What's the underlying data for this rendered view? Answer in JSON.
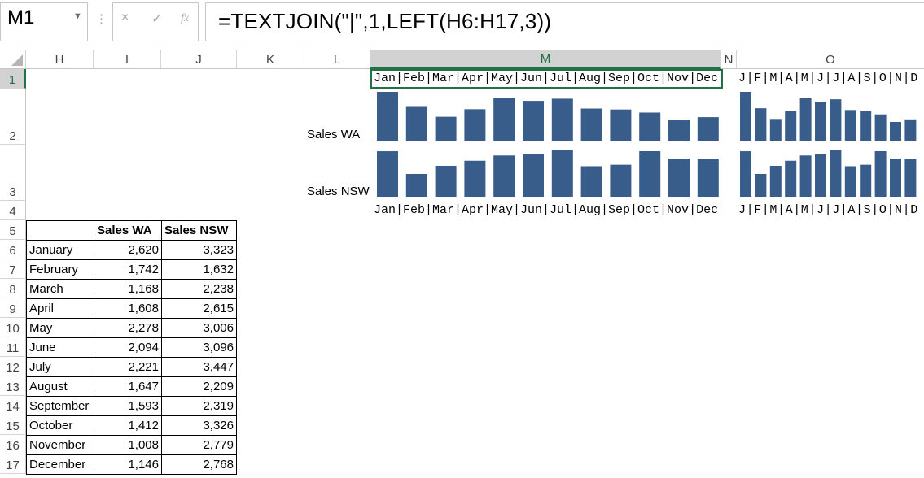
{
  "name_box": {
    "value": "M1"
  },
  "formula_bar": {
    "formula": "=TEXTJOIN(\"|\",1,LEFT(H6:H17,3))",
    "cancel_icon": "×",
    "enter_icon": "✓",
    "fx_icon": "fx",
    "dots": "⋮"
  },
  "columns": [
    "H",
    "I",
    "J",
    "K",
    "L",
    "M",
    "N",
    "O"
  ],
  "rows": [
    "1",
    "2",
    "3",
    "4",
    "5",
    "6",
    "7",
    "8",
    "9",
    "10",
    "11",
    "12",
    "13",
    "14",
    "15",
    "16",
    "17"
  ],
  "cells": {
    "M1": "Jan|Feb|Mar|Apr|May|Jun|Jul|Aug|Sep|Oct|Nov|Dec",
    "O1": "J|F|M|A|M|J|J|A|S|O|N|D",
    "M4": "Jan|Feb|Mar|Apr|May|Jun|Jul|Aug|Sep|Oct|Nov|Dec",
    "O4": "J|F|M|A|M|J|J|A|S|O|N|D",
    "L2": "Sales WA",
    "L3": "Sales NSW"
  },
  "table": {
    "headers": [
      "",
      "Sales WA",
      "Sales NSW"
    ],
    "rows": [
      [
        "January",
        "2,620",
        "3,323"
      ],
      [
        "February",
        "1,742",
        "1,632"
      ],
      [
        "March",
        "1,168",
        "2,238"
      ],
      [
        "April",
        "1,608",
        "2,615"
      ],
      [
        "May",
        "2,278",
        "3,006"
      ],
      [
        "June",
        "2,094",
        "3,096"
      ],
      [
        "July",
        "2,221",
        "3,447"
      ],
      [
        "August",
        "1,647",
        "2,209"
      ],
      [
        "September",
        "1,593",
        "2,319"
      ],
      [
        "October",
        "1,412",
        "3,326"
      ],
      [
        "November",
        "1,008",
        "2,779"
      ],
      [
        "December",
        "1,146",
        "2,768"
      ]
    ]
  },
  "chart_data": [
    {
      "type": "bar",
      "categories": [
        "Jan",
        "Feb",
        "Mar",
        "Apr",
        "May",
        "Jun",
        "Jul",
        "Aug",
        "Sep",
        "Oct",
        "Nov",
        "Dec"
      ],
      "series": [
        {
          "name": "Sales WA",
          "values": [
            2620,
            1742,
            1168,
            1608,
            2278,
            2094,
            2221,
            1647,
            1593,
            1412,
            1008,
            1146
          ]
        }
      ]
    },
    {
      "type": "bar",
      "categories": [
        "Jan",
        "Feb",
        "Mar",
        "Apr",
        "May",
        "Jun",
        "Jul",
        "Aug",
        "Sep",
        "Oct",
        "Nov",
        "Dec"
      ],
      "series": [
        {
          "name": "Sales NSW",
          "values": [
            3323,
            1632,
            2238,
            2615,
            3006,
            3096,
            3447,
            2209,
            2319,
            3326,
            2779,
            2768
          ]
        }
      ]
    }
  ],
  "colors": {
    "bar": "#385d8a",
    "selection": "#217346"
  }
}
